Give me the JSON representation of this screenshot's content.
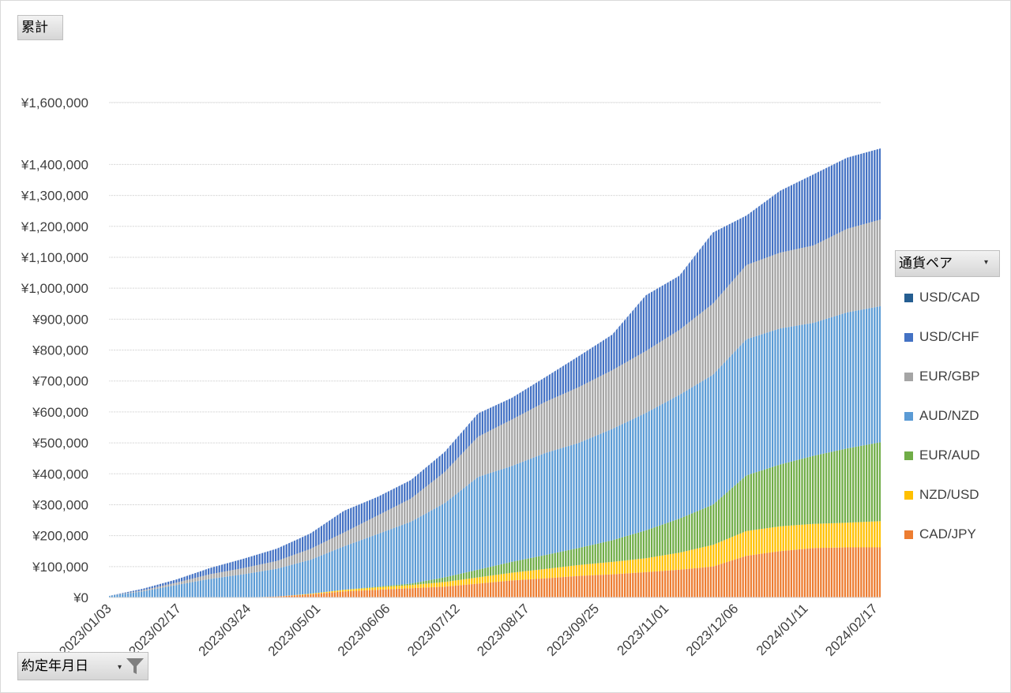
{
  "buttons": {
    "sum_label": "累計",
    "date_label": "約定年月日",
    "legend_label": "通貨ペア"
  },
  "chart_data": {
    "type": "area",
    "stacked": true,
    "xaxis_tick_labels": [
      "2023/01/03",
      "2023/02/17",
      "2023/03/24",
      "2023/05/01",
      "2023/06/06",
      "2023/07/12",
      "2023/08/17",
      "2023/09/25",
      "2023/11/01",
      "2023/12/06",
      "2024/01/11",
      "2024/02/17"
    ],
    "yaxis_tick_labels": [
      "¥0",
      "¥100,000",
      "¥200,000",
      "¥300,000",
      "¥400,000",
      "¥500,000",
      "¥600,000",
      "¥700,000",
      "¥800,000",
      "¥900,000",
      "¥1,000,000",
      "¥1,100,000",
      "¥1,200,000",
      "¥1,300,000",
      "¥1,400,000",
      "¥1,600,000"
    ],
    "ylim": [
      0,
      1600000
    ],
    "grid": true,
    "legend_position": "right",
    "x": [
      "2023/01/03",
      "2023/01/20",
      "2023/02/17",
      "2023/03/07",
      "2023/03/24",
      "2023/04/12",
      "2023/05/01",
      "2023/05/18",
      "2023/06/06",
      "2023/06/23",
      "2023/07/12",
      "2023/07/31",
      "2023/08/17",
      "2023/09/05",
      "2023/09/25",
      "2023/10/13",
      "2023/11/01",
      "2023/11/18",
      "2023/12/06",
      "2023/12/23",
      "2024/01/11",
      "2024/01/29",
      "2024/02/17",
      "2024/03/01"
    ],
    "series": [
      {
        "name": "CAD/JPY",
        "color": "#ED7D31",
        "values": [
          0,
          0,
          0,
          0,
          0,
          3000,
          10000,
          20000,
          25000,
          30000,
          35000,
          45000,
          55000,
          62000,
          70000,
          75000,
          82000,
          90000,
          100000,
          135000,
          150000,
          160000,
          162000,
          162000
        ]
      },
      {
        "name": "NZD/USD",
        "color": "#FFC000",
        "values": [
          0,
          0,
          0,
          0,
          0,
          0,
          2000,
          5000,
          8000,
          10000,
          15000,
          20000,
          25000,
          30000,
          35000,
          40000,
          45000,
          55000,
          70000,
          80000,
          80000,
          78000,
          80000,
          85000
        ]
      },
      {
        "name": "EUR/AUD",
        "color": "#70AD47",
        "values": [
          0,
          0,
          0,
          0,
          0,
          0,
          0,
          0,
          2000,
          5000,
          15000,
          25000,
          35000,
          45000,
          55000,
          70000,
          90000,
          110000,
          130000,
          180000,
          200000,
          220000,
          240000,
          255000
        ]
      },
      {
        "name": "AUD/NZD",
        "color": "#5B9BD5",
        "values": [
          5000,
          20000,
          40000,
          60000,
          75000,
          90000,
          110000,
          140000,
          170000,
          200000,
          240000,
          300000,
          310000,
          330000,
          340000,
          360000,
          380000,
          400000,
          420000,
          440000,
          440000,
          430000,
          440000,
          440000
        ]
      },
      {
        "name": "EUR/GBP",
        "color": "#A5A5A5",
        "values": [
          0,
          3000,
          8000,
          15000,
          20000,
          25000,
          35000,
          45000,
          60000,
          75000,
          100000,
          130000,
          150000,
          165000,
          180000,
          190000,
          200000,
          210000,
          230000,
          240000,
          245000,
          250000,
          270000,
          280000
        ]
      },
      {
        "name": "USD/CHF",
        "color": "#4472C4",
        "values": [
          0,
          5000,
          10000,
          20000,
          30000,
          40000,
          50000,
          70000,
          60000,
          60000,
          65000,
          75000,
          70000,
          80000,
          100000,
          115000,
          180000,
          175000,
          230000,
          160000,
          200000,
          230000,
          230000,
          230000
        ]
      },
      {
        "name": "USD/CAD",
        "color": "#255E91",
        "values": [
          0,
          0,
          0,
          0,
          0,
          0,
          0,
          0,
          0,
          0,
          0,
          0,
          0,
          0,
          0,
          0,
          0,
          0,
          0,
          0,
          0,
          0,
          0,
          0
        ]
      }
    ]
  }
}
